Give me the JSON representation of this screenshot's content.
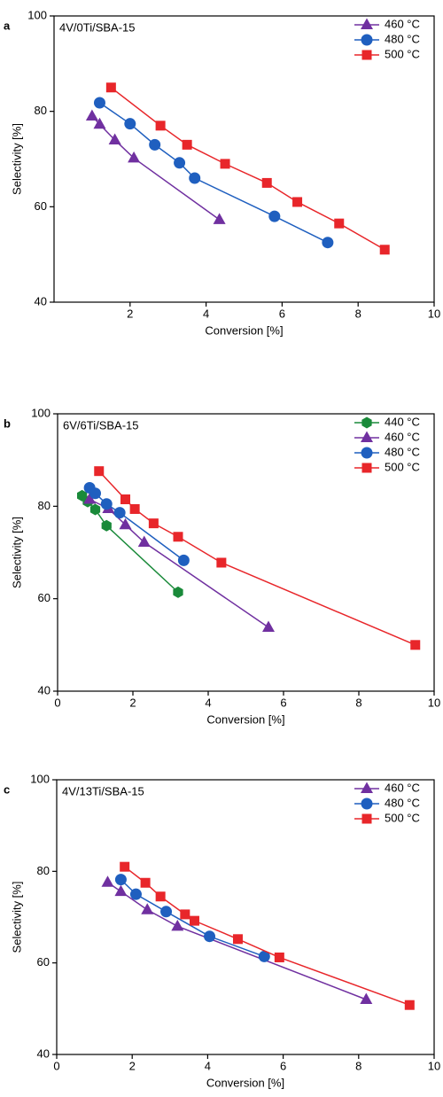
{
  "chart_data": [
    {
      "type": "line",
      "panel_label": "a",
      "annotation": "4V/0Ti/SBA-15",
      "x_label": "Conversion [%]",
      "y_label": "Selectivity [%]",
      "xlim": [
        0,
        10
      ],
      "xticks": [
        2,
        4,
        6,
        8,
        10
      ],
      "ylim": [
        40,
        100
      ],
      "yticks": [
        40,
        60,
        80,
        100
      ],
      "grid": false,
      "legend": "upper-right",
      "series": [
        {
          "name": "460 °C",
          "color": "#7030a0",
          "marker": "triangle",
          "x": [
            1.0,
            1.2,
            1.6,
            2.1,
            4.35
          ],
          "values": [
            79,
            77.3,
            74,
            70.2,
            57.3
          ]
        },
        {
          "name": "480 °C",
          "color": "#1f5fbf",
          "marker": "circle",
          "x": [
            1.2,
            2.0,
            2.65,
            3.3,
            3.7,
            5.8,
            7.2
          ],
          "values": [
            81.8,
            77.4,
            73,
            69.2,
            66,
            58,
            52.5
          ]
        },
        {
          "name": "500 °C",
          "color": "#e8262a",
          "marker": "square",
          "x": [
            1.5,
            2.8,
            3.5,
            4.5,
            5.6,
            6.4,
            7.5,
            8.7
          ],
          "values": [
            85,
            77,
            73,
            69,
            65,
            61,
            56.5,
            51
          ]
        }
      ]
    },
    {
      "type": "line",
      "panel_label": "b",
      "annotation": "6V/6Ti/SBA-15",
      "x_label": "Conversion [%]",
      "y_label": "Selectivity [%]",
      "xlim": [
        0,
        10
      ],
      "xticks": [
        0,
        2,
        4,
        6,
        8,
        10
      ],
      "ylim": [
        40,
        100
      ],
      "yticks": [
        40,
        60,
        80,
        100
      ],
      "grid": false,
      "legend": "upper-right",
      "series": [
        {
          "name": "440 °C",
          "color": "#1a8a3a",
          "marker": "hexagon",
          "x": [
            0.65,
            0.8,
            1.0,
            1.3,
            3.2
          ],
          "values": [
            82.3,
            81,
            79.3,
            75.8,
            61.4
          ]
        },
        {
          "name": "460 °C",
          "color": "#7030a0",
          "marker": "triangle",
          "x": [
            0.85,
            1.35,
            1.8,
            2.3,
            5.6
          ],
          "values": [
            81.5,
            79.5,
            76,
            72.2,
            53.8
          ]
        },
        {
          "name": "480 °C",
          "color": "#1f5fbf",
          "marker": "circle",
          "x": [
            0.85,
            1.0,
            1.3,
            1.65,
            3.35
          ],
          "values": [
            84,
            82.8,
            80.5,
            78.6,
            68.3
          ]
        },
        {
          "name": "500 °C",
          "color": "#e8262a",
          "marker": "square",
          "x": [
            1.1,
            1.8,
            2.05,
            2.55,
            3.2,
            4.35,
            9.5
          ],
          "values": [
            87.6,
            81.5,
            79.4,
            76.3,
            73.4,
            67.8,
            50
          ]
        }
      ]
    },
    {
      "type": "line",
      "panel_label": "c",
      "annotation": "4V/13Ti/SBA-15",
      "x_label": "Conversion [%]",
      "y_label": "Selectivity [%]",
      "xlim": [
        0,
        10
      ],
      "xticks": [
        0,
        2,
        4,
        6,
        8,
        10
      ],
      "ylim": [
        40,
        100
      ],
      "yticks": [
        40,
        60,
        80,
        100
      ],
      "grid": false,
      "legend": "upper-right",
      "series": [
        {
          "name": "460 °C",
          "color": "#7030a0",
          "marker": "triangle",
          "x": [
            1.35,
            1.7,
            2.4,
            3.2,
            8.2
          ],
          "values": [
            77.6,
            75.6,
            71.6,
            68,
            52
          ]
        },
        {
          "name": "480 °C",
          "color": "#1f5fbf",
          "marker": "circle",
          "x": [
            1.7,
            2.1,
            2.9,
            4.05,
            5.5
          ],
          "values": [
            78.2,
            75,
            71.2,
            65.8,
            61.4
          ]
        },
        {
          "name": "500 °C",
          "color": "#e8262a",
          "marker": "square",
          "x": [
            1.8,
            2.35,
            2.75,
            3.4,
            3.65,
            4.8,
            5.9,
            9.35
          ],
          "values": [
            81,
            77.5,
            74.5,
            70.6,
            69.2,
            65.2,
            61.2,
            50.8
          ]
        }
      ]
    }
  ]
}
